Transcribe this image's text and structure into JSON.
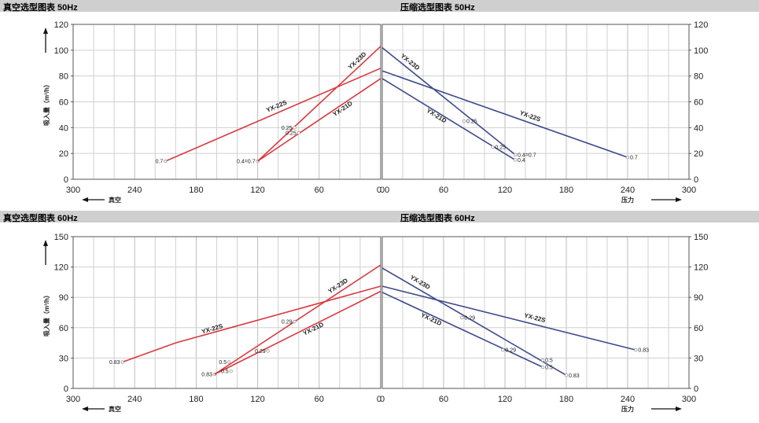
{
  "banners": {
    "vac50": "真空选型图表 50Hz",
    "press50": "压缩选型图表 50Hz",
    "vac60": "真空选型图表 60Hz",
    "press60": "压缩选型图表 60Hz"
  },
  "colors": {
    "vacuum": "#d9383f",
    "pressure": "#3e4a8c",
    "grid": "#d0d0d0",
    "banner": "#cfcfcf"
  },
  "chart_data": [
    {
      "type": "line",
      "title": "真空选型图表 50Hz",
      "xlabel": "真空",
      "ylabel": "吸入量（m³/h）",
      "x_ticks": [
        "300",
        "240",
        "180",
        "120",
        "60",
        "0"
      ],
      "y_ticks": [
        "0",
        "20",
        "40",
        "60",
        "80",
        "100",
        "120"
      ],
      "xlim": [
        300,
        0
      ],
      "ylim": [
        0,
        120
      ],
      "series": [
        {
          "name": "YX-22S",
          "points": [
            [
              210,
              14
            ],
            [
              0,
              86
            ]
          ],
          "point_labels": [
            {
              "x": 210,
              "y": 14,
              "text": "0.7"
            }
          ]
        },
        {
          "name": "YX-23D",
          "points": [
            [
              120,
              14
            ],
            [
              0,
              103
            ]
          ],
          "point_labels": [
            {
              "x": 120,
              "y": 14,
              "text": "0.4=0.7"
            },
            {
              "x": 84,
              "y": 40,
              "text": "0.25"
            }
          ]
        },
        {
          "name": "YX-21D",
          "points": [
            [
              120,
              14
            ],
            [
              0,
              78
            ]
          ],
          "point_labels": [
            {
              "x": 80,
              "y": 36,
              "text": "0.25"
            }
          ]
        }
      ]
    },
    {
      "type": "line",
      "title": "压缩选型图表 50Hz",
      "xlabel": "压力",
      "ylabel": "",
      "x_ticks": [
        "00",
        "60",
        "120",
        "180",
        "240",
        "300"
      ],
      "y_ticks": [
        "0",
        "20",
        "40",
        "60",
        "80",
        "100",
        "120"
      ],
      "xlim": [
        0,
        300
      ],
      "ylim": [
        0,
        120
      ],
      "series": [
        {
          "name": "YX-23D",
          "points": [
            [
              0,
              102
            ],
            [
              130,
              19
            ]
          ],
          "point_labels": [
            {
              "x": 80,
              "y": 45,
              "text": "0.25"
            },
            {
              "x": 130,
              "y": 19,
              "text": "0.4=0.7"
            }
          ]
        },
        {
          "name": "YX-21D",
          "points": [
            [
              0,
              78
            ],
            [
              130,
              15
            ]
          ],
          "point_labels": [
            {
              "x": 130,
              "y": 15,
              "text": "0.4"
            },
            {
              "x": 108,
              "y": 25,
              "text": "0.25"
            }
          ]
        },
        {
          "name": "YX-22S",
          "points": [
            [
              0,
              84
            ],
            [
              240,
              17
            ]
          ],
          "point_labels": [
            {
              "x": 240,
              "y": 17,
              "text": "0.7"
            }
          ]
        }
      ]
    },
    {
      "type": "line",
      "title": "真空选型图表 60Hz",
      "xlabel": "真空",
      "ylabel": "吸入量（m³/h）",
      "x_ticks": [
        "300",
        "240",
        "180",
        "120",
        "60",
        "0"
      ],
      "y_ticks": [
        "0",
        "30",
        "60",
        "90",
        "120",
        "150"
      ],
      "xlim": [
        300,
        0
      ],
      "ylim": [
        0,
        150
      ],
      "series": [
        {
          "name": "YX-22S",
          "points": [
            [
              252,
              26
            ],
            [
              200,
              45
            ],
            [
              0,
              101
            ]
          ],
          "point_labels": [
            {
              "x": 252,
              "y": 26,
              "text": "0.83"
            }
          ]
        },
        {
          "name": "YX-23D",
          "points": [
            [
              162,
              14
            ],
            [
              0,
              122
            ]
          ],
          "point_labels": [
            {
              "x": 162,
              "y": 14,
              "text": "0.83"
            },
            {
              "x": 148,
              "y": 26,
              "text": "0.5"
            },
            {
              "x": 84,
              "y": 66,
              "text": "0.29"
            }
          ]
        },
        {
          "name": "YX-21D",
          "points": [
            [
              162,
              14
            ],
            [
              0,
              96
            ]
          ],
          "point_labels": [
            {
              "x": 146,
              "y": 17,
              "text": "0.5"
            },
            {
              "x": 110,
              "y": 37,
              "text": "0.29"
            }
          ]
        }
      ]
    },
    {
      "type": "line",
      "title": "压缩选型图表 60Hz",
      "xlabel": "压力",
      "ylabel": "",
      "x_ticks": [
        "0",
        "60",
        "120",
        "180",
        "240",
        "300"
      ],
      "y_ticks": [
        "0",
        "30",
        "60",
        "90",
        "120",
        "150"
      ],
      "xlim": [
        0,
        300
      ],
      "ylim": [
        0,
        150
      ],
      "series": [
        {
          "name": "YX-23D",
          "points": [
            [
              0,
              119
            ],
            [
              180,
              13
            ]
          ],
          "point_labels": [
            {
              "x": 180,
              "y": 13,
              "text": "0.83"
            },
            {
              "x": 157,
              "y": 28,
              "text": "0.5"
            },
            {
              "x": 78,
              "y": 70,
              "text": "0.29"
            }
          ]
        },
        {
          "name": "YX-21D",
          "points": [
            [
              0,
              95
            ],
            [
              157,
              21
            ]
          ],
          "point_labels": [
            {
              "x": 157,
              "y": 21,
              "text": "0.5"
            },
            {
              "x": 118,
              "y": 38,
              "text": "0.29"
            }
          ]
        },
        {
          "name": "YX-22S",
          "points": [
            [
              0,
              101
            ],
            [
              248,
              38
            ]
          ],
          "point_labels": [
            {
              "x": 248,
              "y": 38,
              "text": "0.83"
            }
          ]
        }
      ]
    }
  ]
}
